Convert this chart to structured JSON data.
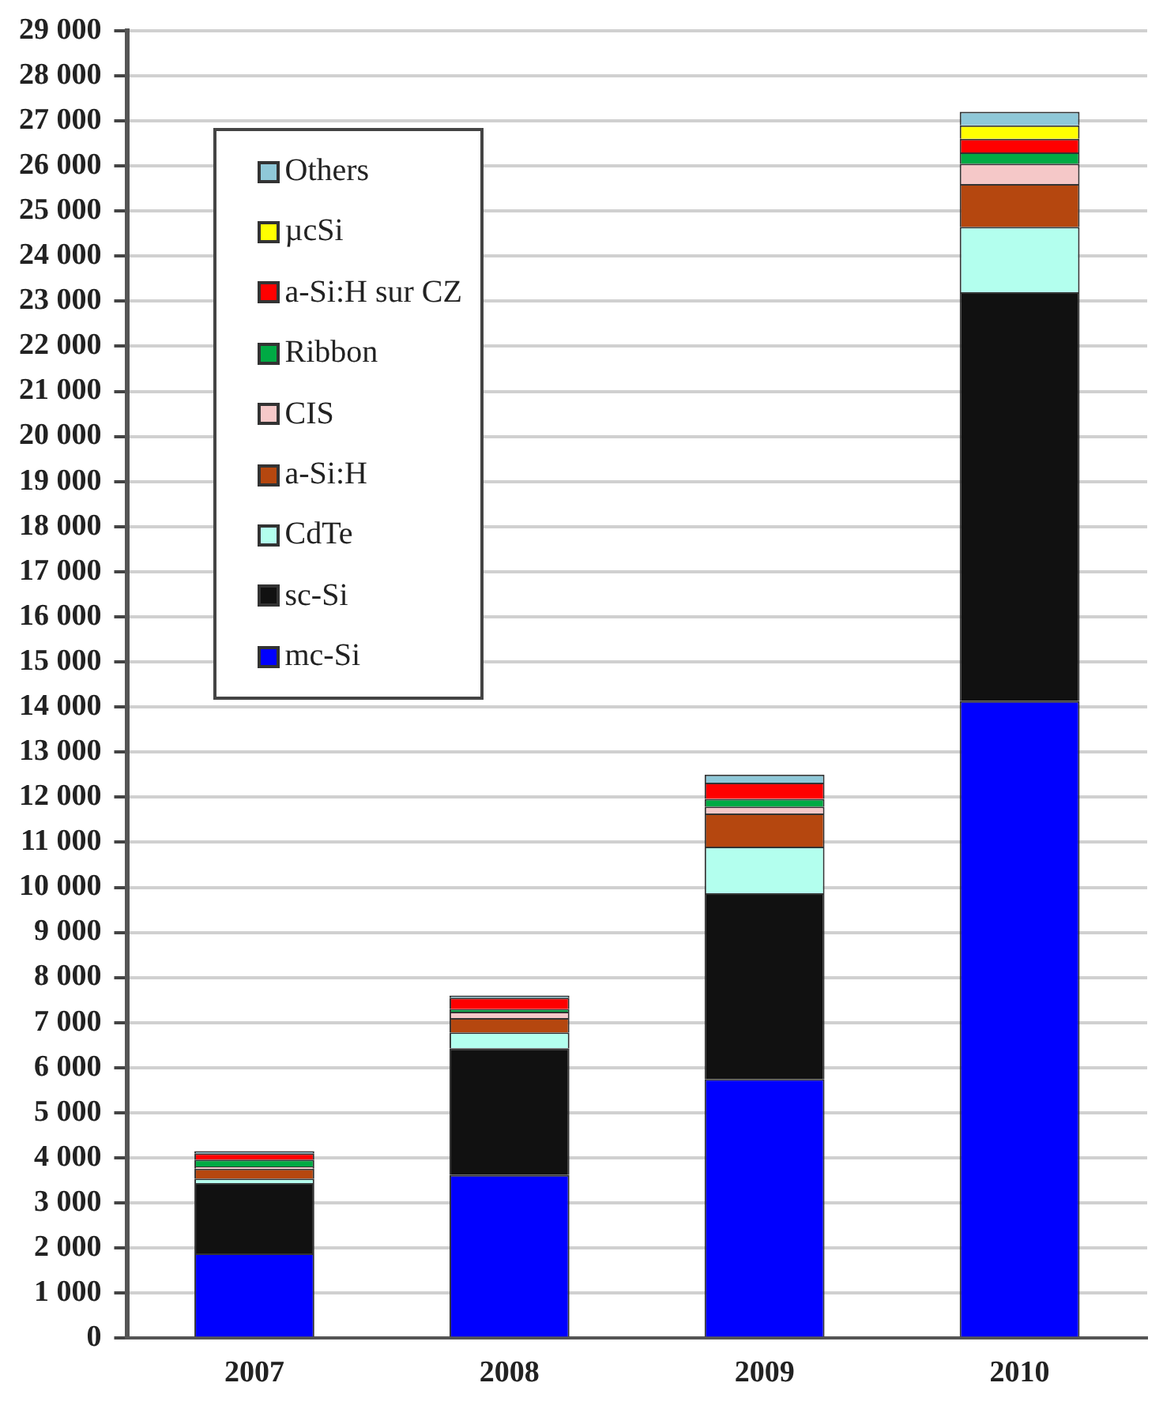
{
  "chart_data": {
    "type": "bar",
    "stacked": true,
    "categories": [
      "2007",
      "2008",
      "2009",
      "2010"
    ],
    "series": [
      {
        "name": "mc-Si",
        "color": "#0000ff",
        "values": [
          1880,
          3620,
          5750,
          14130
        ]
      },
      {
        "name": "sc-Si",
        "color": "#111111",
        "values": [
          1560,
          2810,
          4120,
          9070
        ]
      },
      {
        "name": "CdTe",
        "color": "#b3ffee",
        "values": [
          100,
          350,
          1030,
          1450
        ]
      },
      {
        "name": "a-Si:H",
        "color": "#b5470f",
        "values": [
          220,
          320,
          740,
          950
        ]
      },
      {
        "name": "CIS",
        "color": "#f5c8c8",
        "values": [
          50,
          140,
          150,
          450
        ]
      },
      {
        "name": "Ribbon",
        "color": "#00aa44",
        "values": [
          150,
          60,
          170,
          250
        ]
      },
      {
        "name": "a-Si:H sur CZ",
        "color": "#ff0000",
        "values": [
          140,
          250,
          360,
          300
        ]
      },
      {
        "name": "µcSi",
        "color": "#ffff00",
        "values": [
          0,
          0,
          0,
          300
        ]
      },
      {
        "name": "Others",
        "color": "#8fc8d8",
        "values": [
          50,
          50,
          180,
          300
        ]
      }
    ],
    "ylim": [
      0,
      29000
    ],
    "yticks": [
      {
        "value": 0,
        "label": "0"
      },
      {
        "value": 1000,
        "label": "1 000"
      },
      {
        "value": 2000,
        "label": "2 000"
      },
      {
        "value": 3000,
        "label": "3 000"
      },
      {
        "value": 4000,
        "label": "4 000"
      },
      {
        "value": 5000,
        "label": "5 000"
      },
      {
        "value": 6000,
        "label": "6 000"
      },
      {
        "value": 7000,
        "label": "7 000"
      },
      {
        "value": 8000,
        "label": "8 000"
      },
      {
        "value": 9000,
        "label": "9 000"
      },
      {
        "value": 10000,
        "label": "10 000"
      },
      {
        "value": 11000,
        "label": "11 000"
      },
      {
        "value": 12000,
        "label": "12 000"
      },
      {
        "value": 13000,
        "label": "13 000"
      },
      {
        "value": 14000,
        "label": "14 000"
      },
      {
        "value": 15000,
        "label": "15 000"
      },
      {
        "value": 16000,
        "label": "16 000"
      },
      {
        "value": 17000,
        "label": "17 000"
      },
      {
        "value": 18000,
        "label": "18 000"
      },
      {
        "value": 19000,
        "label": "19 000"
      },
      {
        "value": 20000,
        "label": "20 000"
      },
      {
        "value": 21000,
        "label": "21 000"
      },
      {
        "value": 22000,
        "label": "22 000"
      },
      {
        "value": 23000,
        "label": "23 000"
      },
      {
        "value": 24000,
        "label": "24 000"
      },
      {
        "value": 25000,
        "label": "25 000"
      },
      {
        "value": 26000,
        "label": "26 000"
      },
      {
        "value": 27000,
        "label": "27 000"
      },
      {
        "value": 28000,
        "label": "28 000"
      },
      {
        "value": 29000,
        "label": "29 000"
      }
    ],
    "grid": "y",
    "legend": "top left"
  }
}
